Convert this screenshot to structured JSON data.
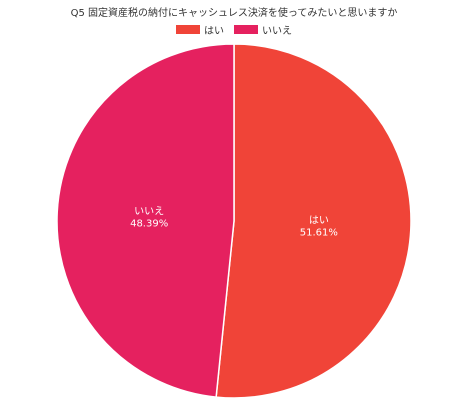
{
  "chart_data": {
    "type": "pie",
    "title": "Q5 固定資産税の納付にキャッシュレス決済を使ってみたいと思いますか",
    "legend_position": "top",
    "categories": [
      "はい",
      "いいえ"
    ],
    "values": [
      51.61,
      48.39
    ],
    "value_labels": [
      "51.61%",
      "48.39%"
    ],
    "colors": [
      "#f04438",
      "#e5215f"
    ]
  }
}
